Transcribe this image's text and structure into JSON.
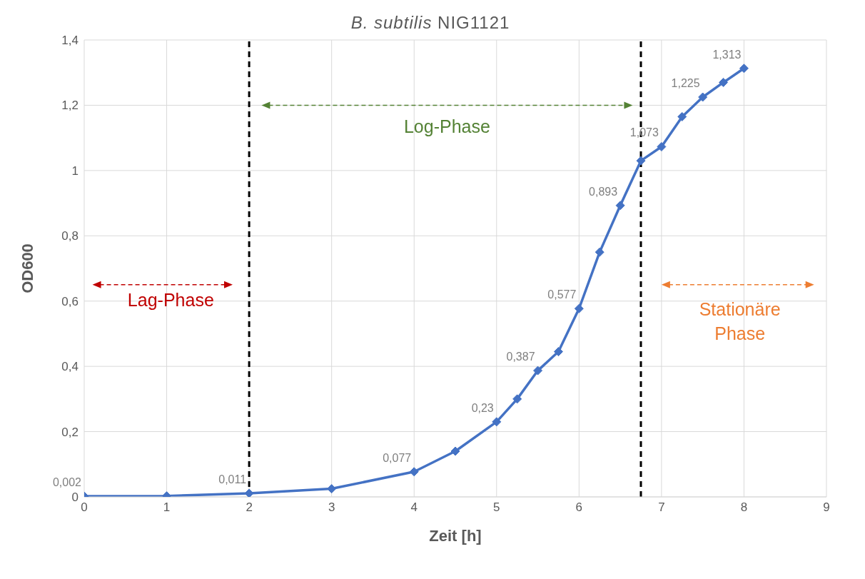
{
  "chart_data": {
    "type": "line",
    "title": "B. subtilis NIG1121",
    "xlabel": "Zeit [h]",
    "ylabel": "OD600",
    "x": [
      0,
      1,
      2,
      3,
      4,
      4.5,
      5,
      5.25,
      5.5,
      5.75,
      6,
      6.25,
      6.5,
      6.75,
      7,
      7.25,
      7.5,
      7.75,
      8
    ],
    "series": [
      {
        "color": "#4472c4",
        "values": [
          0.002,
          0.003,
          0.011,
          0.025,
          0.077,
          0.14,
          0.23,
          0.3,
          0.387,
          0.445,
          0.577,
          0.75,
          0.893,
          1.03,
          1.073,
          1.165,
          1.225,
          1.27,
          1.313
        ],
        "value_labels": [
          "0,002",
          null,
          "0,011",
          null,
          "0,077",
          null,
          "0,23",
          null,
          "0,387",
          null,
          "0,577",
          null,
          "0,893",
          null,
          "1,073",
          null,
          "1,225",
          null,
          "1,313"
        ]
      }
    ],
    "xlim": [
      0,
      9
    ],
    "xticks": [
      0,
      1,
      2,
      3,
      4,
      5,
      6,
      7,
      8,
      9
    ],
    "ylim": [
      0,
      1.4
    ],
    "yticks": [
      0,
      {
        "value": 0.2,
        "label": "0,2"
      },
      {
        "value": 0.4,
        "label": "0,4"
      },
      {
        "value": 0.6,
        "label": "0,6"
      },
      {
        "value": 0.8,
        "label": "0,8"
      },
      1,
      {
        "value": 1.2,
        "label": "1,2"
      },
      {
        "value": 1.4,
        "label": "1,4"
      }
    ],
    "ref_lines": [
      {
        "axis": "x",
        "value": 2,
        "color": "#000000",
        "line_style": "dashed"
      },
      {
        "axis": "x",
        "value": 6.75,
        "color": "#000000",
        "line_style": "dashed"
      }
    ],
    "annotations": [
      "Lag-Phase",
      "Log-Phase",
      "Stationäre Phase"
    ],
    "grid": true,
    "marker": "diamond",
    "line_style": "solid",
    "legend": false
  }
}
